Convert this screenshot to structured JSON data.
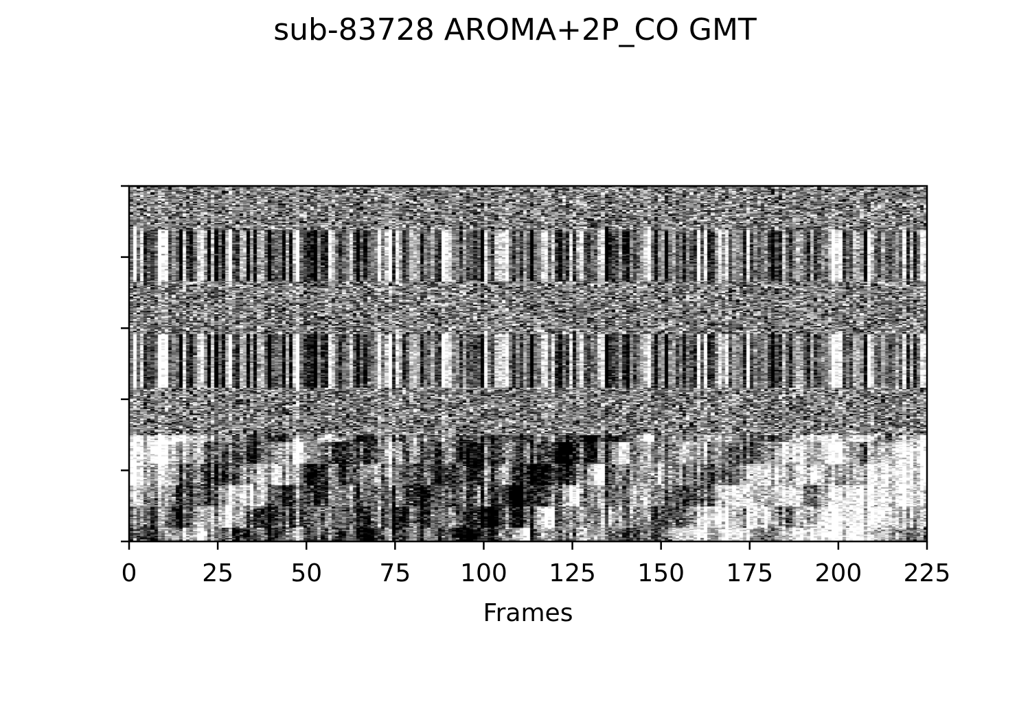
{
  "chart_data": {
    "type": "heatmap",
    "title": "sub-83728 AROMA+2P_CO GMT",
    "xlabel": "Frames",
    "ylabel": "",
    "xlim": [
      0,
      225
    ],
    "x_ticks": [
      0,
      25,
      50,
      75,
      100,
      125,
      150,
      175,
      200,
      225
    ],
    "y_tick_count": 6,
    "y_tick_labels_shown": false,
    "colormap": "gray",
    "grid": false,
    "legend": "none",
    "n_frames": 225,
    "n_voxel_rows": 300,
    "rows_per_tick": 60,
    "structured_bands": [
      {
        "rows": [
          37,
          80
        ],
        "note": "vertical striping across frames"
      },
      {
        "rows": [
          125,
          170
        ],
        "note": "vertical striping across frames"
      },
      {
        "rows": [
          210,
          300
        ],
        "note": "blocky low-frequency patches"
      }
    ],
    "notable_frames": {
      "bright": [
        3,
        10,
        28,
        36,
        47,
        58,
        73,
        88,
        101,
        106,
        117,
        126,
        133,
        138,
        150,
        160,
        174,
        176,
        198,
        220
      ],
      "dark": [
        2,
        14,
        30,
        39,
        52,
        66,
        82,
        97,
        110,
        113,
        121,
        123,
        140,
        154,
        176,
        186,
        193,
        210,
        219
      ]
    }
  },
  "colors": {
    "background": "#ffffff",
    "axis": "#000000",
    "cmap_low": "#000000",
    "cmap_high": "#ffffff"
  }
}
